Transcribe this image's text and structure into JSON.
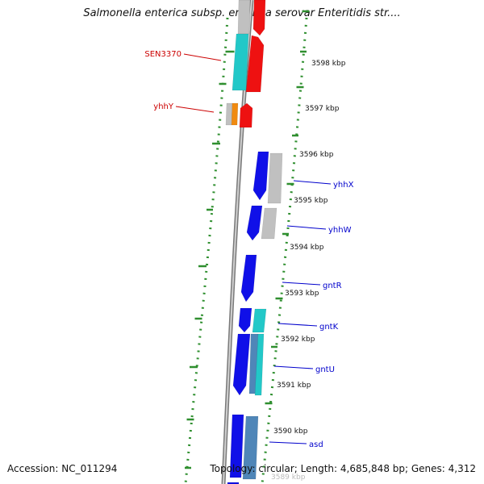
{
  "title": "Salmonella enterica subsp. enterica serovar Enteritidis str....",
  "footer": {
    "accession": "Accession: NC_011294",
    "summary": "Topology: circular; Length: 4,685,848 bp; Genes: 4,312"
  },
  "colors": {
    "backbone": "#9a9a9a",
    "gc_skew": "#2f8f2f",
    "forward_label": "#cc0000",
    "reverse_label": "#0000cc",
    "blue": "#1010e8",
    "red": "#ee1111",
    "cyan": "#22c8c8",
    "gray": "#c0c0c0",
    "orange": "#f08a10",
    "steelblue": "#4f86b8"
  },
  "scale_ticks": [
    "3598 kbp",
    "3597 kbp",
    "3596 kbp",
    "3595 kbp",
    "3594 kbp",
    "3593 kbp",
    "3592 kbp",
    "3591 kbp",
    "3590 kbp",
    "3589 kbp"
  ],
  "genes": [
    {
      "name": "SEN3370",
      "strand": "forward"
    },
    {
      "name": "yhhY",
      "strand": "forward"
    },
    {
      "name": "yhhX",
      "strand": "reverse"
    },
    {
      "name": "yhhW",
      "strand": "reverse"
    },
    {
      "name": "gntR",
      "strand": "reverse"
    },
    {
      "name": "gntK",
      "strand": "reverse"
    },
    {
      "name": "gntU",
      "strand": "reverse"
    },
    {
      "name": "asd",
      "strand": "reverse"
    }
  ]
}
